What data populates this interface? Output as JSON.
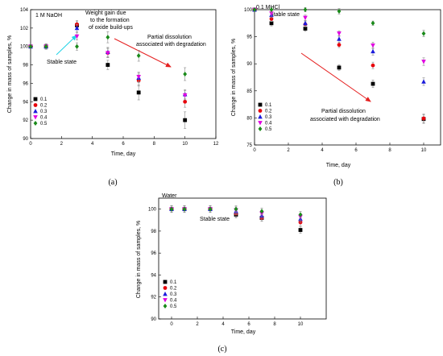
{
  "colors": {
    "0.1": "#000000",
    "0.2": "#e8000b",
    "0.3": "#1a1adc",
    "0.4": "#e000e0",
    "0.5": "#1a8a1a",
    "arrow_red": "#e52020",
    "arrow_cyan": "#22d3e6",
    "errorbar": "#888888"
  },
  "chart_data": [
    {
      "type": "scatter",
      "caption": "(a)",
      "title": "1 M NaOH",
      "xlabel": "Time, day",
      "ylabel": "Change in mass of samples, %",
      "xlim": [
        0,
        12
      ],
      "ylim": [
        90,
        104
      ],
      "xticks": [
        0,
        2,
        4,
        6,
        8,
        10,
        12
      ],
      "yticks": [
        90,
        92,
        94,
        96,
        98,
        100,
        102,
        104
      ],
      "legend_position": "bottom-left",
      "annotations": [
        "Weight gain due to the formation of oxide build-ups",
        "Partial dissolution associated with degradation",
        "Stable state"
      ],
      "x": [
        0,
        1,
        3,
        5,
        7,
        10
      ],
      "series": [
        {
          "name": "0.1",
          "marker": "square",
          "values": [
            100,
            100,
            102.3,
            98.0,
            95.0,
            92.0
          ],
          "err": [
            0,
            0.3,
            0.4,
            0.5,
            0.8,
            0.9
          ]
        },
        {
          "name": "0.2",
          "marker": "circle",
          "values": [
            100,
            100,
            102.4,
            99.3,
            96.3,
            94.0
          ],
          "err": [
            0,
            0.3,
            0.4,
            0.5,
            0.6,
            0.6
          ]
        },
        {
          "name": "0.3",
          "marker": "triangle-up",
          "values": [
            100,
            100,
            102.0,
            99.4,
            96.6,
            94.8
          ],
          "err": [
            0,
            0.3,
            0.4,
            0.5,
            0.5,
            0.5
          ]
        },
        {
          "name": "0.4",
          "marker": "triangle-down",
          "values": [
            100,
            100,
            101.1,
            99.3,
            96.7,
            94.7
          ],
          "err": [
            0,
            0.3,
            0.4,
            0.5,
            0.5,
            0.5
          ]
        },
        {
          "name": "0.5",
          "marker": "diamond",
          "values": [
            100,
            100,
            100.0,
            101.0,
            99.0,
            97.0
          ],
          "err": [
            0,
            0.3,
            0.4,
            0.6,
            0.6,
            0.7
          ]
        }
      ]
    },
    {
      "type": "scatter",
      "caption": "(b)",
      "title": "0.1 MHCl",
      "xlabel": "Time, day",
      "ylabel": "Change in mass of samples, %",
      "xlim": [
        0,
        11
      ],
      "ylim": [
        75,
        100
      ],
      "xticks": [
        0,
        2,
        4,
        6,
        8,
        10
      ],
      "yticks": [
        75,
        80,
        85,
        90,
        95,
        100
      ],
      "legend_position": "bottom-left",
      "annotations": [
        "Stable state",
        "Partial dissolution associated with degradation"
      ],
      "x": [
        0,
        1,
        3,
        5,
        7,
        10
      ],
      "series": [
        {
          "name": "0.1",
          "marker": "square",
          "values": [
            100,
            97.5,
            96.5,
            89.3,
            86.3,
            79.8
          ],
          "err": [
            0,
            0.5,
            0.5,
            0.5,
            0.7,
            0.8
          ]
        },
        {
          "name": "0.2",
          "marker": "circle",
          "values": [
            100,
            98.3,
            97.3,
            93.5,
            89.7,
            79.9
          ],
          "err": [
            0,
            0.5,
            0.5,
            0.5,
            0.6,
            0.8
          ]
        },
        {
          "name": "0.3",
          "marker": "triangle-up",
          "values": [
            100,
            99.0,
            97.5,
            94.6,
            92.3,
            86.7
          ],
          "err": [
            0,
            0.5,
            0.5,
            0.6,
            0.7,
            0.7
          ]
        },
        {
          "name": "0.4",
          "marker": "triangle-down",
          "values": [
            100,
            99.3,
            98.5,
            95.6,
            93.4,
            90.4
          ],
          "err": [
            0,
            0.5,
            0.5,
            0.5,
            0.6,
            0.7
          ]
        },
        {
          "name": "0.5",
          "marker": "diamond",
          "values": [
            100,
            100,
            100,
            99.7,
            97.5,
            95.6
          ],
          "err": [
            0,
            0.5,
            0.4,
            0.5,
            0.4,
            0.6
          ]
        }
      ]
    },
    {
      "type": "scatter",
      "caption": "(c)",
      "title": "Water",
      "xlabel": "Time, day",
      "ylabel": "Change in mass of samples, %",
      "xlim": [
        -1,
        12
      ],
      "ylim": [
        90,
        101
      ],
      "xticks": [
        0,
        2,
        4,
        6,
        8,
        10
      ],
      "yticks": [
        90,
        92,
        94,
        96,
        98,
        100
      ],
      "legend_position": "bottom-left",
      "annotations": [
        "Stable state"
      ],
      "x": [
        0,
        1,
        3,
        5,
        7,
        10
      ],
      "series": [
        {
          "name": "0.1",
          "marker": "square",
          "values": [
            100,
            100,
            100,
            99.5,
            99.2,
            98.1
          ],
          "err": [
            0.3,
            0.3,
            0.3,
            0.3,
            0.3,
            0.3
          ]
        },
        {
          "name": "0.2",
          "marker": "circle",
          "values": [
            100,
            100,
            100,
            99.6,
            99.2,
            98.8
          ],
          "err": [
            0.3,
            0.3,
            0.3,
            0.3,
            0.3,
            0.3
          ]
        },
        {
          "name": "0.3",
          "marker": "triangle-up",
          "values": [
            100,
            100,
            100,
            99.8,
            99.4,
            99.1
          ],
          "err": [
            0.3,
            0.3,
            0.3,
            0.3,
            0.3,
            0.3
          ]
        },
        {
          "name": "0.4",
          "marker": "triangle-down",
          "values": [
            100,
            100,
            100,
            99.9,
            99.6,
            99.3
          ],
          "err": [
            0.3,
            0.3,
            0.3,
            0.3,
            0.3,
            0.3
          ]
        },
        {
          "name": "0.5",
          "marker": "diamond",
          "values": [
            100,
            100,
            100,
            100,
            99.8,
            99.5
          ],
          "err": [
            0.3,
            0.3,
            0.3,
            0.3,
            0.3,
            0.3
          ]
        }
      ]
    }
  ]
}
